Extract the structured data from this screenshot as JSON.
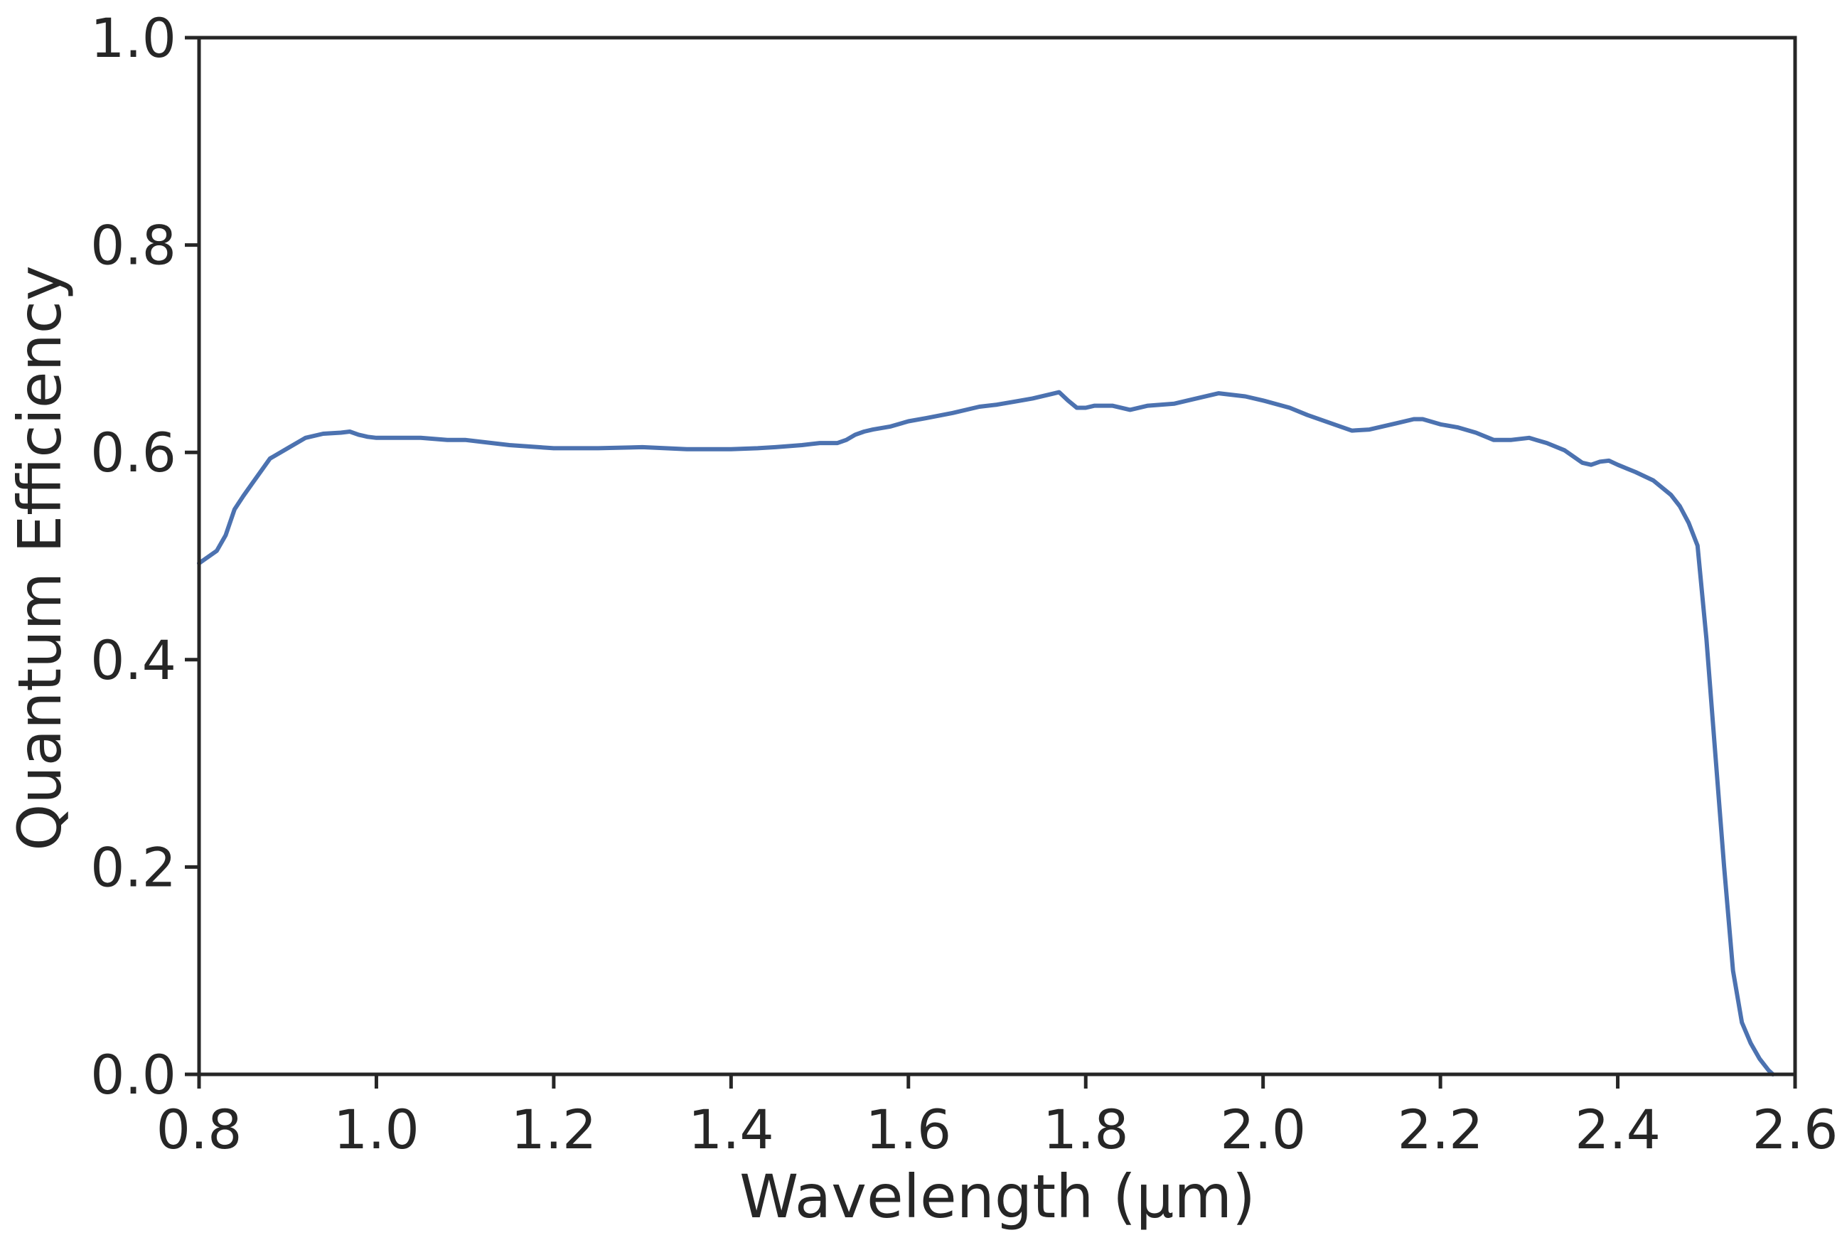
{
  "chart_data": {
    "type": "line",
    "title": "",
    "xlabel": "Wavelength (μm)",
    "ylabel": "Quantum Efficiency",
    "xlim": [
      0.8,
      2.6
    ],
    "ylim": [
      0.0,
      1.0
    ],
    "grid": false,
    "x_ticks": [
      "0.8",
      "1.0",
      "1.2",
      "1.4",
      "1.6",
      "1.8",
      "2.0",
      "2.2",
      "2.4",
      "2.6"
    ],
    "y_ticks": [
      "0.0",
      "0.2",
      "0.4",
      "0.6",
      "0.8",
      "1.0"
    ],
    "line_color": "#4c72b0",
    "series": [
      {
        "x": [
          0.8,
          0.82,
          0.83,
          0.84,
          0.85,
          0.86,
          0.88,
          0.9,
          0.92,
          0.94,
          0.96,
          0.97,
          0.98,
          0.99,
          1.0,
          1.05,
          1.08,
          1.1,
          1.15,
          1.2,
          1.25,
          1.3,
          1.35,
          1.4,
          1.43,
          1.45,
          1.48,
          1.5,
          1.52,
          1.53,
          1.54,
          1.55,
          1.56,
          1.58,
          1.6,
          1.62,
          1.65,
          1.68,
          1.7,
          1.72,
          1.74,
          1.76,
          1.77,
          1.78,
          1.79,
          1.8,
          1.81,
          1.83,
          1.85,
          1.87,
          1.9,
          1.92,
          1.95,
          1.98,
          2.0,
          2.03,
          2.05,
          2.08,
          2.1,
          2.12,
          2.15,
          2.17,
          2.18,
          2.2,
          2.22,
          2.24,
          2.26,
          2.28,
          2.3,
          2.32,
          2.34,
          2.36,
          2.37,
          2.38,
          2.39,
          2.4,
          2.42,
          2.44,
          2.46,
          2.47,
          2.48,
          2.49,
          2.5,
          2.51,
          2.52,
          2.53,
          2.54,
          2.55,
          2.56,
          2.57,
          2.575
        ],
        "y": [
          0.493,
          0.505,
          0.52,
          0.545,
          0.558,
          0.57,
          0.594,
          0.604,
          0.614,
          0.618,
          0.619,
          0.62,
          0.617,
          0.615,
          0.614,
          0.614,
          0.612,
          0.612,
          0.607,
          0.604,
          0.604,
          0.605,
          0.603,
          0.603,
          0.604,
          0.605,
          0.607,
          0.609,
          0.609,
          0.612,
          0.617,
          0.62,
          0.622,
          0.625,
          0.63,
          0.633,
          0.638,
          0.644,
          0.646,
          0.649,
          0.652,
          0.656,
          0.658,
          0.65,
          0.643,
          0.643,
          0.645,
          0.645,
          0.641,
          0.645,
          0.647,
          0.651,
          0.657,
          0.654,
          0.65,
          0.643,
          0.636,
          0.627,
          0.621,
          0.622,
          0.628,
          0.632,
          0.632,
          0.627,
          0.624,
          0.619,
          0.612,
          0.612,
          0.614,
          0.609,
          0.602,
          0.59,
          0.588,
          0.591,
          0.592,
          0.588,
          0.581,
          0.573,
          0.559,
          0.548,
          0.532,
          0.51,
          0.42,
          0.31,
          0.2,
          0.1,
          0.05,
          0.03,
          0.015,
          0.004,
          0.0
        ]
      }
    ]
  }
}
